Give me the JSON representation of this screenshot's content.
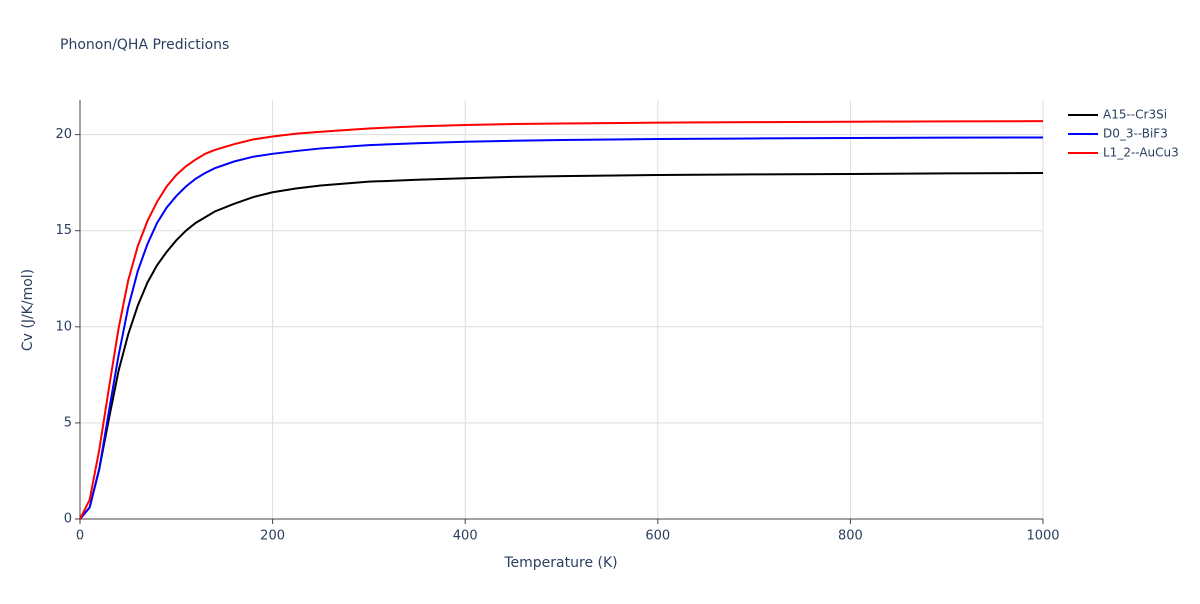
{
  "chart_data": {
    "type": "line",
    "title": "Phonon/QHA Predictions",
    "x_label": "Temperature (K)",
    "y_label": "Cv (J/K/mol)",
    "x": [
      0,
      10,
      20,
      30,
      40,
      50,
      60,
      70,
      80,
      90,
      100,
      110,
      120,
      130,
      140,
      160,
      180,
      200,
      225,
      250,
      300,
      350,
      400,
      450,
      500,
      600,
      700,
      800,
      900,
      1000
    ],
    "series": [
      {
        "name": "A15--Cr3Si",
        "color": "#000000",
        "values": [
          0,
          0.6,
          2.6,
          5.2,
          7.7,
          9.6,
          11.1,
          12.3,
          13.2,
          13.9,
          14.5,
          15.0,
          15.4,
          15.7,
          16.0,
          16.4,
          16.75,
          17.0,
          17.2,
          17.35,
          17.55,
          17.65,
          17.73,
          17.8,
          17.84,
          17.9,
          17.93,
          17.95,
          17.98,
          18.0
        ]
      },
      {
        "name": "D0_3--BiF3",
        "color": "#0000ff",
        "values": [
          0,
          0.6,
          2.6,
          5.6,
          8.5,
          11.0,
          12.9,
          14.3,
          15.4,
          16.2,
          16.8,
          17.3,
          17.7,
          18.0,
          18.25,
          18.6,
          18.85,
          19.0,
          19.15,
          19.28,
          19.45,
          19.55,
          19.63,
          19.68,
          19.72,
          19.77,
          19.8,
          19.82,
          19.84,
          19.85
        ]
      },
      {
        "name": "L1_2--AuCu3",
        "color": "#ff0000",
        "values": [
          0,
          1.0,
          3.6,
          6.8,
          9.9,
          12.4,
          14.2,
          15.5,
          16.5,
          17.3,
          17.9,
          18.35,
          18.7,
          19.0,
          19.2,
          19.5,
          19.75,
          19.9,
          20.05,
          20.15,
          20.32,
          20.43,
          20.5,
          20.55,
          20.58,
          20.62,
          20.65,
          20.67,
          20.69,
          20.7
        ]
      }
    ],
    "xlim": [
      0,
      1000
    ],
    "ylim": [
      0,
      21.8
    ],
    "xticks": [
      0,
      200,
      400,
      600,
      800,
      1000
    ],
    "yticks": [
      0,
      5,
      10,
      15,
      20
    ],
    "grid": true,
    "legend": "top-right"
  }
}
